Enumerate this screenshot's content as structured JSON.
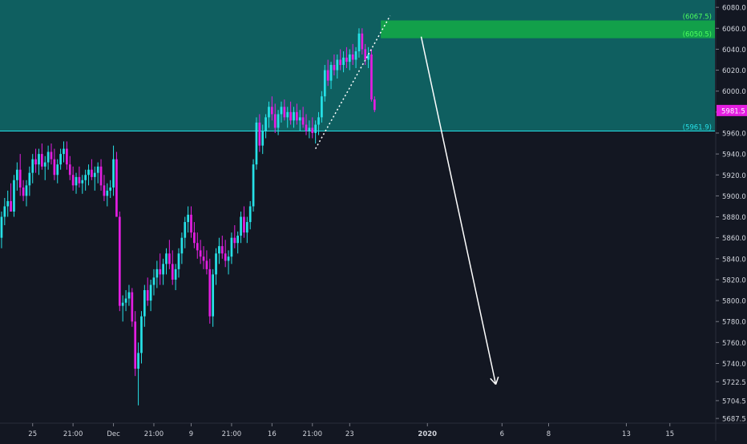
{
  "chart_data": {
    "type": "candlestick",
    "title": "",
    "xlabel": "",
    "ylabel": "",
    "ylim": [
      5683,
      6087
    ],
    "y_ticks": [
      6080.0,
      6060.0,
      6040.0,
      6020.0,
      6000.0,
      5980.0,
      5960.0,
      5940.0,
      5920.0,
      5900.0,
      5880.0,
      5860.0,
      5840.0,
      5820.0,
      5800.0,
      5780.0,
      5760.0,
      5740.0,
      5722.5,
      5704.5,
      5687.5
    ],
    "x_ticks": [
      {
        "label": "25",
        "bar": 10
      },
      {
        "label": "21:00",
        "bar": 23
      },
      {
        "label": "Dec",
        "bar": 36
      },
      {
        "label": "21:00",
        "bar": 49
      },
      {
        "label": "9",
        "bar": 61
      },
      {
        "label": "21:00",
        "bar": 74
      },
      {
        "label": "16",
        "bar": 87
      },
      {
        "label": "21:00",
        "bar": 100
      },
      {
        "label": "23",
        "bar": 112
      },
      {
        "label": "2020",
        "bar": 137,
        "bold": true
      },
      {
        "label": "6",
        "bar": 161
      },
      {
        "label": "8",
        "bar": 176
      },
      {
        "label": "13",
        "bar": 201
      },
      {
        "label": "15",
        "bar": 215
      }
    ],
    "bars_visible": 230,
    "up_color": "#26e1e7",
    "down_color": "#e41ee1",
    "candles": [
      [
        5860,
        5885,
        5850,
        5880
      ],
      [
        5880,
        5898,
        5872,
        5890
      ],
      [
        5890,
        5905,
        5880,
        5895
      ],
      [
        5895,
        5912,
        5885,
        5885
      ],
      [
        5885,
        5920,
        5880,
        5915
      ],
      [
        5915,
        5932,
        5905,
        5925
      ],
      [
        5925,
        5940,
        5900,
        5908
      ],
      [
        5908,
        5915,
        5895,
        5900
      ],
      [
        5900,
        5915,
        5890,
        5910
      ],
      [
        5910,
        5928,
        5900,
        5922
      ],
      [
        5922,
        5940,
        5912,
        5935
      ],
      [
        5935,
        5945,
        5922,
        5930
      ],
      [
        5930,
        5945,
        5920,
        5940
      ],
      [
        5940,
        5950,
        5925,
        5928
      ],
      [
        5928,
        5938,
        5915,
        5932
      ],
      [
        5932,
        5948,
        5925,
        5942
      ],
      [
        5942,
        5950,
        5930,
        5935
      ],
      [
        5935,
        5945,
        5915,
        5920
      ],
      [
        5920,
        5935,
        5912,
        5930
      ],
      [
        5930,
        5945,
        5925,
        5940
      ],
      [
        5940,
        5952,
        5932,
        5945
      ],
      [
        5945,
        5952,
        5925,
        5930
      ],
      [
        5930,
        5938,
        5915,
        5920
      ],
      [
        5920,
        5928,
        5905,
        5910
      ],
      [
        5910,
        5922,
        5902,
        5918
      ],
      [
        5918,
        5928,
        5908,
        5912
      ],
      [
        5912,
        5920,
        5902,
        5915
      ],
      [
        5915,
        5925,
        5905,
        5920
      ],
      [
        5920,
        5930,
        5910,
        5925
      ],
      [
        5925,
        5935,
        5915,
        5918
      ],
      [
        5918,
        5928,
        5905,
        5922
      ],
      [
        5922,
        5932,
        5912,
        5928
      ],
      [
        5928,
        5935,
        5905,
        5910
      ],
      [
        5910,
        5920,
        5895,
        5900
      ],
      [
        5900,
        5912,
        5890,
        5905
      ],
      [
        5905,
        5915,
        5898,
        5908
      ],
      [
        5908,
        5948,
        5900,
        5935
      ],
      [
        5935,
        5942,
        5880,
        5880
      ],
      [
        5880,
        5885,
        5790,
        5795
      ],
      [
        5795,
        5805,
        5780,
        5798
      ],
      [
        5798,
        5810,
        5790,
        5802
      ],
      [
        5802,
        5815,
        5795,
        5808
      ],
      [
        5808,
        5812,
        5775,
        5780
      ],
      [
        5780,
        5790,
        5728,
        5735
      ],
      [
        5735,
        5760,
        5700,
        5750
      ],
      [
        5750,
        5790,
        5740,
        5785
      ],
      [
        5785,
        5815,
        5775,
        5810
      ],
      [
        5810,
        5822,
        5795,
        5800
      ],
      [
        5800,
        5820,
        5790,
        5815
      ],
      [
        5815,
        5830,
        5805,
        5822
      ],
      [
        5822,
        5838,
        5812,
        5830
      ],
      [
        5830,
        5845,
        5815,
        5825
      ],
      [
        5825,
        5840,
        5815,
        5835
      ],
      [
        5835,
        5850,
        5825,
        5845
      ],
      [
        5845,
        5858,
        5830,
        5835
      ],
      [
        5835,
        5848,
        5815,
        5820
      ],
      [
        5820,
        5835,
        5810,
        5830
      ],
      [
        5830,
        5850,
        5822,
        5845
      ],
      [
        5845,
        5865,
        5835,
        5860
      ],
      [
        5860,
        5880,
        5850,
        5875
      ],
      [
        5875,
        5890,
        5865,
        5882
      ],
      [
        5882,
        5890,
        5860,
        5865
      ],
      [
        5865,
        5875,
        5850,
        5855
      ],
      [
        5855,
        5865,
        5840,
        5848
      ],
      [
        5848,
        5858,
        5835,
        5842
      ],
      [
        5842,
        5852,
        5830,
        5838
      ],
      [
        5838,
        5848,
        5825,
        5830
      ],
      [
        5830,
        5840,
        5778,
        5785
      ],
      [
        5785,
        5830,
        5775,
        5825
      ],
      [
        5825,
        5850,
        5815,
        5845
      ],
      [
        5845,
        5860,
        5835,
        5852
      ],
      [
        5852,
        5862,
        5840,
        5845
      ],
      [
        5845,
        5858,
        5832,
        5838
      ],
      [
        5838,
        5848,
        5825,
        5842
      ],
      [
        5842,
        5865,
        5835,
        5860
      ],
      [
        5860,
        5872,
        5850,
        5855
      ],
      [
        5855,
        5866,
        5845,
        5862
      ],
      [
        5862,
        5885,
        5855,
        5880
      ],
      [
        5880,
        5890,
        5860,
        5865
      ],
      [
        5865,
        5880,
        5855,
        5875
      ],
      [
        5875,
        5895,
        5868,
        5890
      ],
      [
        5890,
        5935,
        5885,
        5930
      ],
      [
        5930,
        5975,
        5925,
        5970
      ],
      [
        5970,
        5978,
        5942,
        5948
      ],
      [
        5948,
        5968,
        5940,
        5962
      ],
      [
        5962,
        5978,
        5955,
        5975
      ],
      [
        5975,
        5990,
        5965,
        5985
      ],
      [
        5985,
        5995,
        5972,
        5978
      ],
      [
        5978,
        5988,
        5960,
        5965
      ],
      [
        5965,
        5982,
        5958,
        5978
      ],
      [
        5978,
        5990,
        5970,
        5985
      ],
      [
        5985,
        5992,
        5972,
        5975
      ],
      [
        5975,
        5985,
        5965,
        5980
      ],
      [
        5980,
        5990,
        5968,
        5972
      ],
      [
        5972,
        5985,
        5965,
        5980
      ],
      [
        5980,
        5988,
        5968,
        5972
      ],
      [
        5972,
        5982,
        5962,
        5975
      ],
      [
        5975,
        5985,
        5965,
        5968
      ],
      [
        5968,
        5978,
        5958,
        5962
      ],
      [
        5962,
        5972,
        5955,
        5965
      ],
      [
        5965,
        5975,
        5955,
        5960
      ],
      [
        5960,
        5972,
        5950,
        5968
      ],
      [
        5968,
        5980,
        5958,
        5975
      ],
      [
        5975,
        6000,
        5970,
        5995
      ],
      [
        5995,
        6025,
        5990,
        6020
      ],
      [
        6020,
        6030,
        6005,
        6010
      ],
      [
        6010,
        6028,
        6002,
        6025
      ],
      [
        6025,
        6035,
        6015,
        6020
      ],
      [
        6020,
        6035,
        6012,
        6030
      ],
      [
        6030,
        6040,
        6020,
        6025
      ],
      [
        6025,
        6038,
        6018,
        6032
      ],
      [
        6032,
        6042,
        6022,
        6028
      ],
      [
        6028,
        6040,
        6020,
        6035
      ],
      [
        6035,
        6045,
        6025,
        6030
      ],
      [
        6030,
        6042,
        6022,
        6038
      ],
      [
        6038,
        6060,
        6032,
        6055
      ],
      [
        6055,
        6060,
        6035,
        6040
      ],
      [
        6040,
        6045,
        6025,
        6030
      ],
      [
        6030,
        6042,
        6022,
        6035
      ],
      [
        6035,
        6040,
        5990,
        5992
      ],
      [
        5992,
        5995,
        5980,
        5982
      ]
    ],
    "zones": [
      {
        "from": 5961.9,
        "to": 6087,
        "color": "#0f5f60"
      },
      {
        "from": 6050.5,
        "to": 6067.5,
        "color": "#12a04a"
      }
    ],
    "levels": [
      {
        "price": 5961.9,
        "label": "(5961.9)",
        "color": "#26e1e7"
      },
      {
        "price": 6050.5,
        "label": "(6050.5)",
        "color": "#4cff5e"
      },
      {
        "price": 6067.5,
        "label": "(6067.5)",
        "color": "#4cff5e"
      }
    ],
    "last_price": {
      "price": 5981.5,
      "label": "5981.5",
      "color": "#e41ee1"
    },
    "trendline": {
      "from": [
        101,
        5945
      ],
      "to": [
        125,
        6072
      ],
      "color": "#ffffff"
    },
    "arrow": {
      "from": [
        135,
        6052
      ],
      "to": [
        159,
        5720
      ],
      "color": "#ffffff"
    }
  }
}
